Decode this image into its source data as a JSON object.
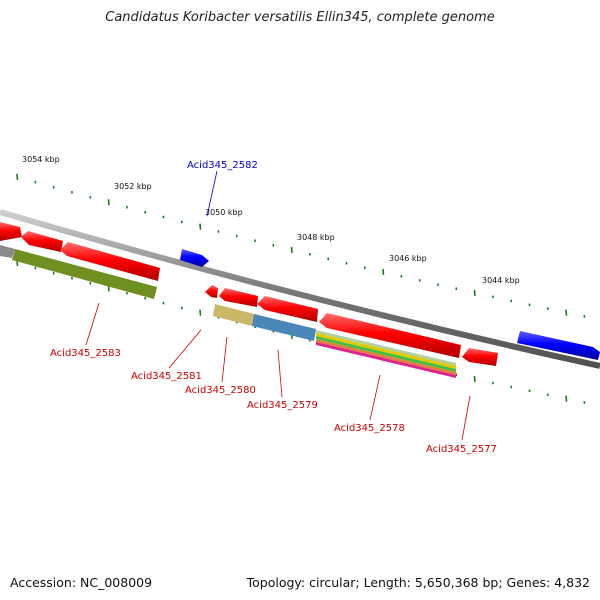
{
  "title": "Candidatus Koribacter versatilis Ellin345, complete genome",
  "footer": {
    "accession": "Accession: NC_008009",
    "summary": "Topology: circular; Length: 5,650,368 bp; Genes: 4,832"
  },
  "colors": {
    "forward_gene": "#0000ff",
    "reverse_gene": "#ff0000",
    "tick": "#1a7a1a",
    "backbone": "#888888",
    "label_forward": "#0000cc",
    "label_reverse": "#cc0000"
  },
  "ticks": [
    {
      "label": "3054 kbp"
    },
    {
      "label": "3052 kbp"
    },
    {
      "label": "3050 kbp"
    },
    {
      "label": "3048 kbp"
    },
    {
      "label": "3046 kbp"
    },
    {
      "label": "3044 kbp"
    }
  ],
  "gene_labels": [
    {
      "name": "Acid345_2582",
      "strand": "forward"
    },
    {
      "name": "Acid345_2583",
      "strand": "reverse"
    },
    {
      "name": "Acid345_2581",
      "strand": "reverse"
    },
    {
      "name": "Acid345_2580",
      "strand": "reverse"
    },
    {
      "name": "Acid345_2579",
      "strand": "reverse"
    },
    {
      "name": "Acid345_2578",
      "strand": "reverse"
    },
    {
      "name": "Acid345_2577",
      "strand": "reverse"
    }
  ]
}
